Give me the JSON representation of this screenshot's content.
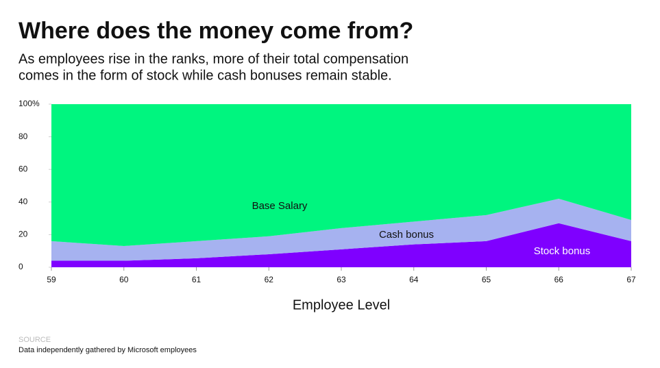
{
  "chart_data": {
    "type": "stacked_area",
    "title": "Where does the money come from?",
    "subtitle": [
      "As employees rise in the ranks, more of their total compensation",
      "comes in the form of stock while cash bonuses remain stable."
    ],
    "x_label": "Employee Level",
    "x": [
      59,
      60,
      61,
      62,
      63,
      64,
      65,
      66,
      67
    ],
    "xlim": [
      59,
      67
    ],
    "xticks": [
      59,
      60,
      61,
      62,
      63,
      64,
      65,
      66,
      67
    ],
    "ylim": [
      0,
      100
    ],
    "yticks": [
      0,
      20,
      40,
      60,
      80,
      {
        "value": 100,
        "label": "100%"
      }
    ],
    "series": [
      {
        "name": "Stock bonus",
        "color": "#7f00ff",
        "label_color": "#ffffff",
        "values": [
          4,
          4,
          5.5,
          8,
          11,
          14,
          16,
          27,
          16
        ]
      },
      {
        "name": "Cash bonus",
        "color": "#a6b2f0",
        "label_color": "#111111",
        "values": [
          12,
          9,
          10.5,
          11,
          13,
          14,
          16,
          15,
          13
        ]
      },
      {
        "name": "Base Salary",
        "color": "#00f57f",
        "label_color": "#111111",
        "values": [
          84,
          87,
          84,
          81,
          76,
          72,
          68,
          58,
          71
        ]
      }
    ],
    "source_label": "SOURCE",
    "source": "Data independently gathered by Microsoft employees"
  }
}
